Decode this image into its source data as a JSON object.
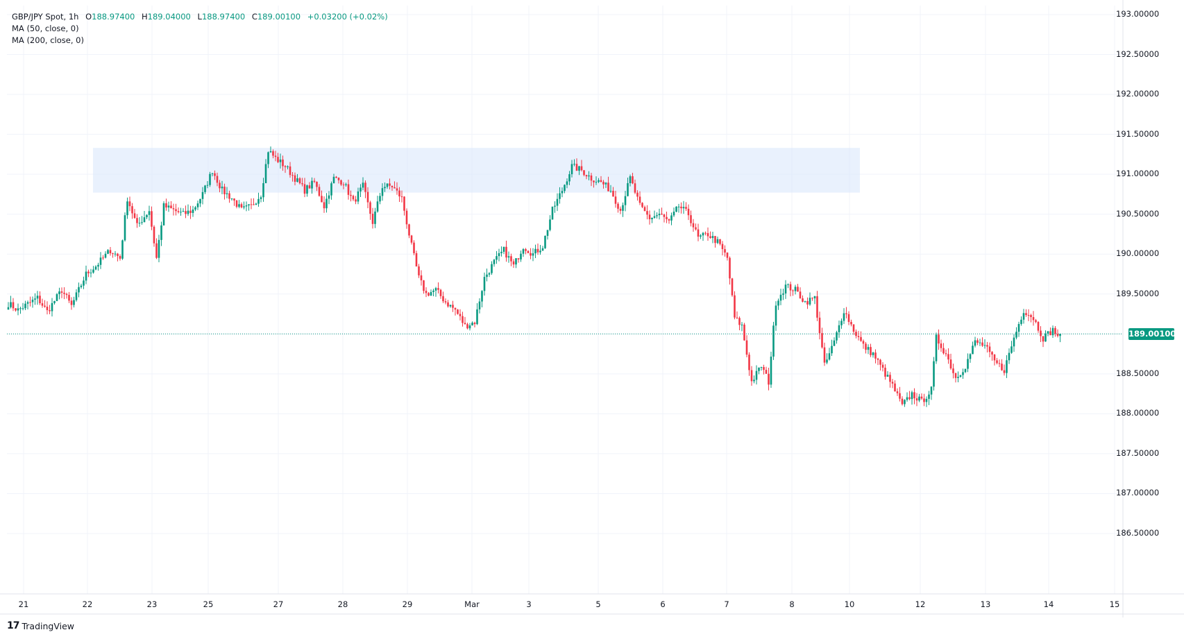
{
  "legend": {
    "symbol": "GBP/JPY Spot, 1h",
    "open_label": "O",
    "open": "188.97400",
    "high_label": "H",
    "high": "189.04000",
    "low_label": "L",
    "low": "188.97400",
    "close_label": "C",
    "close": "189.00100",
    "change": "+0.03200 (+0.02%)",
    "ma50": "MA (50, close, 0)",
    "ma200": "MA (200, close, 0)"
  },
  "last_price": "189.00100",
  "brand": "TradingView",
  "colors": {
    "up": "#089981",
    "down": "#f23645",
    "zone": "#dbe8fb",
    "last_line": "#089981"
  },
  "chart_data": {
    "type": "candlestick",
    "title": "GBP/JPY Spot, 1h",
    "ylim": [
      186.5,
      193.0
    ],
    "y_ticks": [
      "193.00000",
      "192.50000",
      "192.00000",
      "191.50000",
      "191.00000",
      "190.50000",
      "190.00000",
      "189.50000",
      "189.00000",
      "188.50000",
      "188.00000",
      "187.50000",
      "187.00000",
      "186.50000"
    ],
    "x_ticks": [
      "21",
      "22",
      "23",
      "25",
      "27",
      "28",
      "29",
      "Mar",
      "3",
      "5",
      "6",
      "7",
      "8",
      "10",
      "12",
      "13",
      "14",
      "15"
    ],
    "resistance_zone": {
      "low": 190.77,
      "high": 191.33,
      "from_tick": "22",
      "to_tick": "10"
    },
    "last_price": 189.001,
    "path_points": [
      [
        0,
        189.38
      ],
      [
        4,
        189.3
      ],
      [
        12,
        189.45
      ],
      [
        16,
        189.28
      ],
      [
        22,
        189.55
      ],
      [
        26,
        189.35
      ],
      [
        32,
        189.75
      ],
      [
        36,
        189.85
      ],
      [
        42,
        190.05
      ],
      [
        46,
        189.95
      ],
      [
        49,
        190.7
      ],
      [
        53,
        190.35
      ],
      [
        58,
        190.55
      ],
      [
        61,
        189.95
      ],
      [
        64,
        190.6
      ],
      [
        68,
        190.55
      ],
      [
        72,
        190.5
      ],
      [
        76,
        190.55
      ],
      [
        80,
        190.75
      ],
      [
        84,
        191.05
      ],
      [
        88,
        190.8
      ],
      [
        92,
        190.7
      ],
      [
        96,
        190.55
      ],
      [
        100,
        190.6
      ],
      [
        104,
        190.75
      ],
      [
        107,
        191.3
      ],
      [
        110,
        191.2
      ],
      [
        114,
        191.1
      ],
      [
        118,
        190.95
      ],
      [
        122,
        190.8
      ],
      [
        126,
        190.9
      ],
      [
        130,
        190.6
      ],
      [
        134,
        190.95
      ],
      [
        138,
        190.9
      ],
      [
        142,
        190.65
      ],
      [
        146,
        190.85
      ],
      [
        150,
        190.4
      ],
      [
        154,
        190.85
      ],
      [
        158,
        190.85
      ],
      [
        162,
        190.7
      ],
      [
        166,
        190.1
      ],
      [
        169,
        189.7
      ],
      [
        172,
        189.5
      ],
      [
        176,
        189.55
      ],
      [
        180,
        189.4
      ],
      [
        184,
        189.3
      ],
      [
        188,
        189.1
      ],
      [
        192,
        189.15
      ],
      [
        196,
        189.7
      ],
      [
        200,
        189.9
      ],
      [
        204,
        190.05
      ],
      [
        208,
        189.85
      ],
      [
        212,
        190.1
      ],
      [
        216,
        190.0
      ],
      [
        220,
        190.1
      ],
      [
        224,
        190.55
      ],
      [
        228,
        190.8
      ],
      [
        232,
        191.1
      ],
      [
        236,
        191.05
      ],
      [
        240,
        190.95
      ],
      [
        244,
        190.9
      ],
      [
        248,
        190.8
      ],
      [
        252,
        190.55
      ],
      [
        256,
        190.95
      ],
      [
        260,
        190.6
      ],
      [
        264,
        190.45
      ],
      [
        268,
        190.5
      ],
      [
        272,
        190.4
      ],
      [
        276,
        190.6
      ],
      [
        280,
        190.5
      ],
      [
        284,
        190.2
      ],
      [
        288,
        190.25
      ],
      [
        292,
        190.15
      ],
      [
        296,
        189.95
      ],
      [
        299,
        189.2
      ],
      [
        302,
        189.1
      ],
      [
        306,
        188.4
      ],
      [
        310,
        188.6
      ],
      [
        313,
        188.4
      ],
      [
        316,
        189.4
      ],
      [
        320,
        189.6
      ],
      [
        324,
        189.55
      ],
      [
        328,
        189.4
      ],
      [
        332,
        189.45
      ],
      [
        336,
        188.6
      ],
      [
        340,
        188.9
      ],
      [
        344,
        189.3
      ],
      [
        348,
        189.05
      ],
      [
        352,
        188.85
      ],
      [
        356,
        188.75
      ],
      [
        360,
        188.55
      ],
      [
        364,
        188.35
      ],
      [
        368,
        188.1
      ],
      [
        372,
        188.25
      ],
      [
        376,
        188.15
      ],
      [
        380,
        188.3
      ],
      [
        382,
        188.95
      ],
      [
        386,
        188.75
      ],
      [
        390,
        188.45
      ],
      [
        394,
        188.6
      ],
      [
        398,
        188.9
      ],
      [
        402,
        188.85
      ],
      [
        406,
        188.65
      ],
      [
        410,
        188.55
      ],
      [
        414,
        188.95
      ],
      [
        418,
        189.3
      ],
      [
        422,
        189.2
      ],
      [
        426,
        188.95
      ],
      [
        430,
        189.05
      ],
      [
        433,
        188.95
      ]
    ]
  }
}
